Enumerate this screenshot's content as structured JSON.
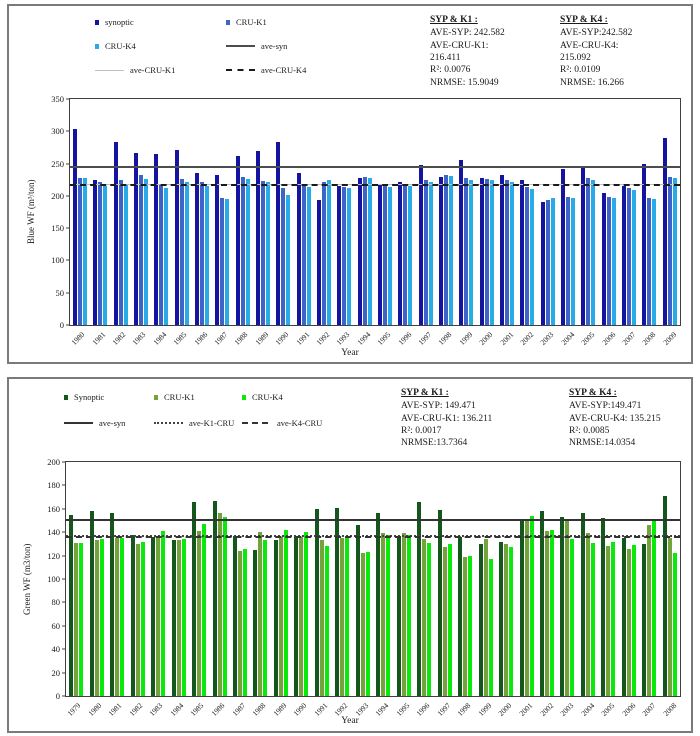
{
  "chart_data": [
    {
      "id": "blue-wf",
      "type": "bar",
      "title": "",
      "xlabel": "Year",
      "ylabel": "Blue WF (m³/ton)",
      "ylim": [
        0,
        350
      ],
      "ytick_step": 50,
      "grid": false,
      "legend_position": "top-left",
      "categories": [
        "1980",
        "1981",
        "1982",
        "1983",
        "1984",
        "1985",
        "1986",
        "1987",
        "1988",
        "1989",
        "1990",
        "1991",
        "1992",
        "1993",
        "1994",
        "1995",
        "1996",
        "1997",
        "1998",
        "1999",
        "2000",
        "2001",
        "2002",
        "2003",
        "2004",
        "2005",
        "2006",
        "2007",
        "2008",
        "2009"
      ],
      "series": [
        {
          "name": "synoptic",
          "color": "#1414A0",
          "values": [
            303,
            225,
            283,
            266,
            265,
            271,
            235,
            233,
            262,
            270,
            283,
            235,
            193,
            215,
            228,
            218,
            222,
            248,
            230,
            255,
            228,
            232,
            225,
            190,
            242,
            245,
            205,
            215,
            250,
            290
          ]
        },
        {
          "name": "CRU-K1",
          "color": "#3E64C8",
          "values": [
            228,
            222,
            225,
            232,
            218,
            226,
            222,
            197,
            229,
            223,
            212,
            219,
            222,
            214,
            230,
            216,
            218,
            225,
            232,
            228,
            226,
            225,
            213,
            193,
            199,
            227,
            199,
            212,
            197,
            230
          ]
        },
        {
          "name": "CRU-K4",
          "color": "#29ABE8",
          "values": [
            227,
            216,
            217,
            226,
            212,
            221,
            216,
            195,
            226,
            222,
            201,
            214,
            224,
            212,
            228,
            213,
            215,
            222,
            231,
            224,
            224,
            222,
            211,
            196,
            197,
            225,
            197,
            209,
            195,
            228
          ]
        }
      ],
      "ref_lines": [
        {
          "name": "ave-syn",
          "value": 242.582,
          "style": "solid",
          "color": "#4D4D4D"
        },
        {
          "name": "ave-CRU-K1",
          "value": 216.411,
          "style": "thin",
          "color": "#C0C0C0"
        },
        {
          "name": "ave-CRU-K4",
          "value": 215.092,
          "style": "dashed",
          "color": "#1A1A1A"
        }
      ],
      "legend": [
        {
          "label": "synoptic",
          "swatch": "bar",
          "color": "#1414A0"
        },
        {
          "label": "CRU-K1",
          "swatch": "bar",
          "color": "#3E64C8"
        },
        {
          "label": "CRU-K4",
          "swatch": "bar",
          "color": "#29ABE8"
        },
        {
          "label": "ave-syn",
          "swatch": "line-solid",
          "color": "#4D4D4D"
        },
        {
          "label": "ave-CRU-K1",
          "swatch": "line-thin",
          "color": "#C0C0C0"
        },
        {
          "label": "ave-CRU-K4",
          "swatch": "line-dashed",
          "color": "#1A1A1A"
        }
      ],
      "stats": [
        {
          "title": "SYP & K1 :",
          "lines": [
            "AVE-SYP: 242.582",
            "AVE-CRU-K1: 216.411",
            "R²: 0.0076",
            "NRMSE: 15.9049"
          ]
        },
        {
          "title": "SYP & K4 :",
          "lines": [
            "AVE-SYP:242.582",
            "AVE-CRU-K4: 215.092",
            "R²: 0.0109",
            "NRMSE: 16.266"
          ]
        }
      ]
    },
    {
      "id": "green-wf",
      "type": "bar",
      "title": "",
      "xlabel": "Year",
      "ylabel": "Green WF (m3/ton)",
      "ylim": [
        0,
        200
      ],
      "ytick_step": 20,
      "grid": false,
      "legend_position": "top-left",
      "categories": [
        "1979",
        "1980",
        "1981",
        "1982",
        "1983",
        "1984",
        "1985",
        "1986",
        "1987",
        "1988",
        "1989",
        "1990",
        "1991",
        "1992",
        "1993",
        "1994",
        "1995",
        "1996",
        "1997",
        "1998",
        "1999",
        "2000",
        "2001",
        "2002",
        "2003",
        "2004",
        "2005",
        "2006",
        "2007",
        "2008"
      ],
      "series": [
        {
          "name": "Synoptic",
          "color": "#14571C",
          "values": [
            155,
            158,
            156,
            138,
            136,
            133,
            166,
            167,
            137,
            125,
            133,
            136,
            160,
            161,
            146,
            156,
            137,
            166,
            159,
            136,
            130,
            132,
            150,
            158,
            153,
            156,
            152,
            135,
            130,
            171
          ]
        },
        {
          "name": "CRU-K1",
          "color": "#74A33C",
          "values": [
            131,
            133,
            135,
            130,
            137,
            133,
            141,
            156,
            124,
            140,
            136,
            136,
            133,
            135,
            122,
            139,
            139,
            134,
            127,
            119,
            134,
            130,
            150,
            141,
            150,
            139,
            128,
            126,
            146,
            135
          ]
        },
        {
          "name": "CRU-K4",
          "color": "#0BE80B",
          "values": [
            131,
            134,
            135,
            132,
            141,
            134,
            147,
            153,
            126,
            133,
            142,
            140,
            128,
            136,
            123,
            138,
            138,
            131,
            130,
            120,
            117,
            127,
            154,
            142,
            134,
            131,
            132,
            129,
            150,
            122
          ]
        }
      ],
      "ref_lines": [
        {
          "name": "ave-syn",
          "value": 149.471,
          "style": "solid",
          "color": "#333333"
        },
        {
          "name": "ave-K1-CRU",
          "value": 136.211,
          "style": "dotted",
          "color": "#444444"
        },
        {
          "name": "ave-K4-CRU",
          "value": 135.215,
          "style": "dashed",
          "color": "#333333"
        }
      ],
      "legend": [
        {
          "label": "Synoptic",
          "swatch": "bar",
          "color": "#14571C"
        },
        {
          "label": "CRU-K1",
          "swatch": "bar",
          "color": "#74A33C"
        },
        {
          "label": "CRU-K4",
          "swatch": "bar",
          "color": "#0BE80B"
        },
        {
          "label": "ave-syn",
          "swatch": "line-solid",
          "color": "#333333"
        },
        {
          "label": "ave-K1-CRU",
          "swatch": "line-dotted",
          "color": "#444444"
        },
        {
          "label": "ave-K4-CRU",
          "swatch": "line-dashed2",
          "color": "#333333"
        }
      ],
      "stats": [
        {
          "title": "SYP & K1 :",
          "lines": [
            "AVE-SYP: 149.471",
            "AVE-CRU-K1: 136.211",
            "R²: 0.0017",
            "NRMSE:13.7364"
          ]
        },
        {
          "title": "SYP & K4 :",
          "lines": [
            "AVE-SYP:149.471",
            "AVE-CRU-K4: 135.215",
            "R²: 0.0085",
            "NRMSE:14.0354"
          ]
        }
      ]
    }
  ]
}
